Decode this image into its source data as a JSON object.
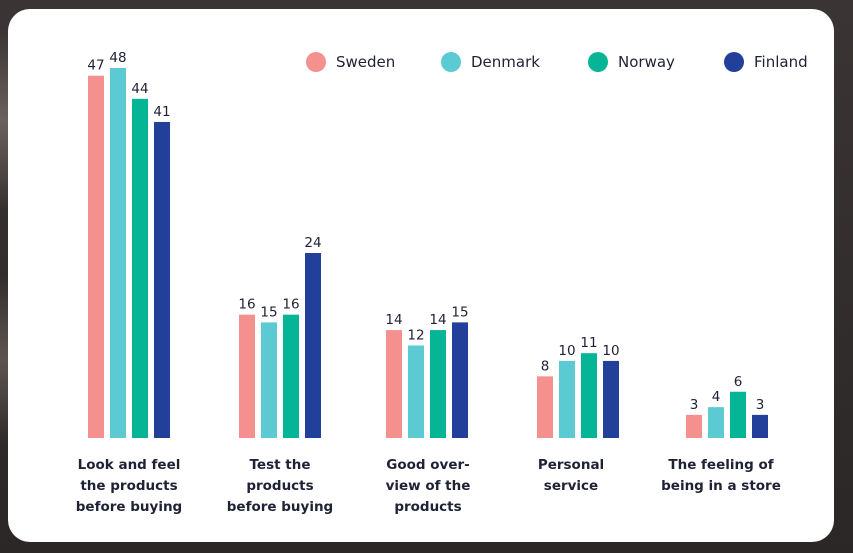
{
  "chart_data": {
    "type": "bar",
    "title": "",
    "xlabel": "",
    "ylabel": "",
    "ylim": [
      0,
      48
    ],
    "legend_position": "top-right",
    "grid": false,
    "categories": [
      "Look and feel\nthe products\nbefore buying",
      "Test the\nproducts\nbefore buying",
      "Good over-\nview of the\nproducts",
      "Personal\nservice",
      "The feeling of\nbeing in a store"
    ],
    "series": [
      {
        "name": "Sweden",
        "color": "#f4918e",
        "values": [
          47,
          16,
          14,
          8,
          3
        ]
      },
      {
        "name": "Denmark",
        "color": "#5ccad2",
        "values": [
          48,
          15,
          12,
          10,
          4
        ]
      },
      {
        "name": "Norway",
        "color": "#05b596",
        "values": [
          44,
          16,
          14,
          11,
          6
        ]
      },
      {
        "name": "Finland",
        "color": "#22409a",
        "values": [
          41,
          24,
          15,
          10,
          3
        ]
      }
    ]
  }
}
